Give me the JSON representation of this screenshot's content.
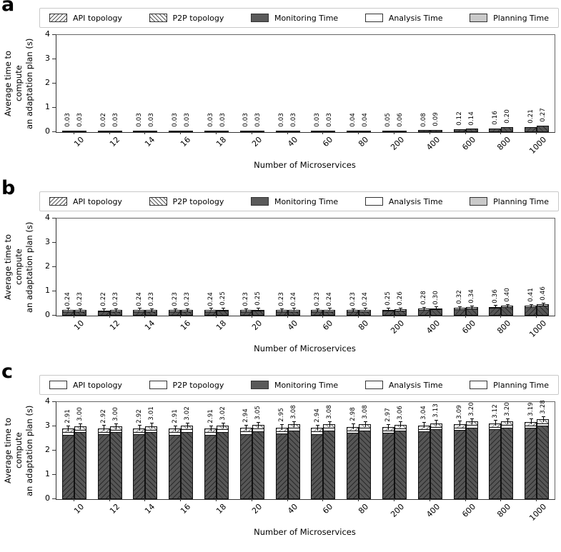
{
  "figure": {
    "ylabel_line1": "Average time to compute",
    "ylabel_line2": "an adaptation plan (s)",
    "xlabel": "Number of Microservices",
    "yticks": [
      "0",
      "1",
      "2",
      "3",
      "4"
    ]
  },
  "legend": {
    "items": [
      {
        "label": "API topology",
        "swatch": "hatch-back"
      },
      {
        "label": "P2P topology",
        "swatch": "hatch-fwd"
      },
      {
        "label": "Monitoring Time",
        "swatch": "dark"
      },
      {
        "label": "Analysis Time",
        "swatch": "white"
      },
      {
        "label": "Planning Time",
        "swatch": "light"
      }
    ]
  },
  "colors": {
    "monitoring": "#565656",
    "analysis": "#ffffff",
    "planning": "#c9c9c9",
    "bar_border": "#111111",
    "legend_border": "#c9c9c9"
  },
  "chart_data": [
    {
      "panel": "a",
      "type": "bar",
      "title": "",
      "categories": [
        "10",
        "12",
        "14",
        "16",
        "18",
        "20",
        "40",
        "60",
        "80",
        "200",
        "400",
        "600",
        "800",
        "1000"
      ],
      "series": [
        {
          "name": "API topology",
          "values": [
            0.03,
            0.02,
            0.03,
            0.03,
            0.03,
            0.03,
            0.03,
            0.03,
            0.04,
            0.05,
            0.08,
            0.12,
            0.16,
            0.21
          ]
        },
        {
          "name": "P2P topology",
          "values": [
            0.03,
            0.03,
            0.03,
            0.03,
            0.03,
            0.03,
            0.03,
            0.03,
            0.04,
            0.06,
            0.09,
            0.14,
            0.2,
            0.27
          ]
        }
      ],
      "xlabel": "Number of Microservices",
      "ylabel": "Average time to compute an adaptation plan (s)",
      "ylim": [
        0,
        4
      ],
      "grid": false,
      "legend_position": "top",
      "legend_entries": [
        "API topology",
        "P2P topology",
        "Monitoring Time",
        "Analysis Time",
        "Planning Time"
      ],
      "legend_variant": "hatched",
      "value_labels_rotated_90": true,
      "top_segments_est": {
        "analysis_s": 0.0,
        "planning_s": 0.0
      }
    },
    {
      "panel": "b",
      "type": "bar",
      "title": "",
      "categories": [
        "10",
        "12",
        "14",
        "16",
        "18",
        "20",
        "40",
        "60",
        "80",
        "200",
        "400",
        "600",
        "800",
        "1000"
      ],
      "series": [
        {
          "name": "API topology",
          "values": [
            0.24,
            0.22,
            0.24,
            0.23,
            0.24,
            0.23,
            0.23,
            0.23,
            0.23,
            0.25,
            0.28,
            0.32,
            0.36,
            0.41
          ]
        },
        {
          "name": "P2P topology",
          "values": [
            0.23,
            0.23,
            0.23,
            0.23,
            0.25,
            0.25,
            0.24,
            0.24,
            0.24,
            0.26,
            0.3,
            0.34,
            0.4,
            0.46
          ]
        }
      ],
      "xlabel": "Number of Microservices",
      "ylabel": "Average time to compute an adaptation plan (s)",
      "ylim": [
        0,
        4
      ],
      "grid": false,
      "legend_position": "top",
      "legend_entries": [
        "API topology",
        "P2P topology",
        "Monitoring Time",
        "Analysis Time",
        "Planning Time"
      ],
      "legend_variant": "hatched",
      "value_labels_rotated_90": true,
      "top_segments_est": {
        "analysis_s": 0.01,
        "planning_s": 0.02
      }
    },
    {
      "panel": "c",
      "type": "bar",
      "title": "",
      "categories": [
        "10",
        "12",
        "14",
        "16",
        "18",
        "20",
        "40",
        "60",
        "80",
        "200",
        "400",
        "600",
        "800",
        "1000"
      ],
      "series": [
        {
          "name": "API topology",
          "values": [
            2.91,
            2.92,
            2.92,
            2.91,
            2.91,
            2.94,
            2.95,
            2.94,
            2.98,
            2.97,
            3.04,
            3.09,
            3.12,
            3.19
          ]
        },
        {
          "name": "P2P topology",
          "values": [
            3.0,
            3.0,
            3.01,
            3.02,
            3.02,
            3.05,
            3.08,
            3.08,
            3.08,
            3.06,
            3.13,
            3.2,
            3.2,
            3.28
          ]
        }
      ],
      "xlabel": "Number of Microservices",
      "ylabel": "Average time to compute an adaptation plan (s)",
      "ylim": [
        0,
        4
      ],
      "grid": false,
      "legend_position": "top",
      "legend_entries": [
        "API topology",
        "P2P topology",
        "Monitoring Time",
        "Analysis Time",
        "Planning Time"
      ],
      "legend_variant": "plain",
      "value_labels_rotated_90": true,
      "top_segments_est": {
        "analysis_s": 0.07,
        "planning_s": 0.12
      }
    }
  ]
}
